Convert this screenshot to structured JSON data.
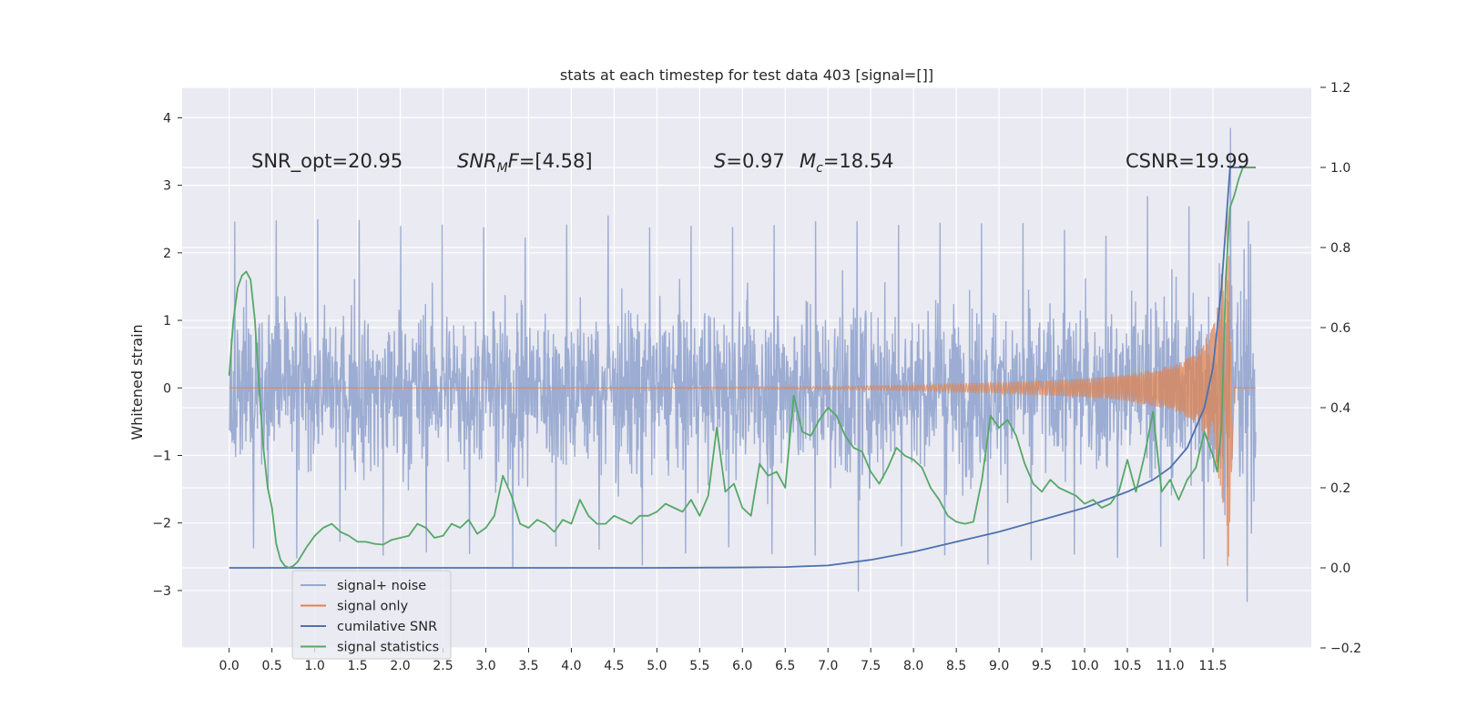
{
  "chart_data": {
    "type": "line",
    "title": "stats at each timestep for test data 403 [signal=[]]",
    "ylabel": "Whitened strain",
    "xlim": [
      -0.55,
      12.65
    ],
    "ylim": [
      -3.85,
      4.45
    ],
    "y2lim": [
      -0.2,
      1.2
    ],
    "grid": true,
    "legend_position": "lower-left",
    "x_ticks": [
      0.0,
      0.5,
      1.0,
      1.5,
      2.0,
      2.5,
      3.0,
      3.5,
      4.0,
      4.5,
      5.0,
      5.5,
      6.0,
      6.5,
      7.0,
      7.5,
      8.0,
      8.5,
      9.0,
      9.5,
      10.0,
      10.5,
      11.0,
      11.5
    ],
    "x_tick_labels": [
      "0.0",
      "0.5",
      "1.0",
      "1.5",
      "2.0",
      "2.5",
      "3.0",
      "3.5",
      "4.0",
      "4.5",
      "5.0",
      "5.5",
      "6.0",
      "6.5",
      "7.0",
      "7.5",
      "8.0",
      "8.5",
      "9.0",
      "9.5",
      "10.0",
      "10.5",
      "11.0",
      "11.5"
    ],
    "y_ticks": [
      -3,
      -2,
      -1,
      0,
      1,
      2,
      3,
      4
    ],
    "y_tick_labels": [
      "−3",
      "−2",
      "−1",
      "0",
      "1",
      "2",
      "3",
      "4"
    ],
    "y2_ticks": [
      -0.2,
      0.0,
      0.2,
      0.4,
      0.6,
      0.8,
      1.0,
      1.2
    ],
    "y2_tick_labels": [
      "−0.2",
      "0.0",
      "0.2",
      "0.4",
      "0.6",
      "0.8",
      "1.0",
      "1.2"
    ],
    "annotations": {
      "snr_opt": "SNR_opt=20.95",
      "snr_mf": "SNR_MF=[4.58]",
      "s_value": "S=0.97",
      "mc_value": "M_c=18.54",
      "csnr": "CSNR=19.99"
    },
    "series": [
      {
        "name": "signal+ noise",
        "axis": "left",
        "color": "#98a9d0",
        "x_range": [
          0.0,
          12.0
        ],
        "typical_band": [
          -1.5,
          1.5
        ],
        "peak_values": [
          2.7,
          2.65,
          2.6,
          2.55,
          2.6,
          2.6,
          2.45,
          2.5,
          2.6,
          2.6,
          2.55,
          2.55,
          2.6,
          2.65,
          2.6,
          2.55,
          2.5,
          2.45,
          2.6,
          2.55,
          2.5,
          2.9,
          2.95,
          4.1
        ],
        "trough_values": [
          -2.4,
          -2.65,
          -2.5,
          -2.6,
          -2.7,
          -2.5,
          -2.75,
          -2.45,
          -2.6,
          -2.8,
          -2.5,
          -2.6,
          -2.65,
          -2.5,
          -3.1,
          -2.5,
          -2.6,
          -2.65,
          -2.7,
          -2.6,
          -2.75,
          -2.6,
          -2.7,
          -3.5
        ]
      },
      {
        "name": "signal only",
        "axis": "left",
        "color": "#dd8452",
        "x": [
          0.0,
          5.5,
          7.0,
          8.0,
          9.0,
          10.0,
          10.5,
          11.0,
          11.3,
          11.5,
          11.6,
          11.68,
          11.75,
          12.0
        ],
        "envelope": [
          0.0,
          0.01,
          0.02,
          0.04,
          0.08,
          0.14,
          0.2,
          0.32,
          0.5,
          0.9,
          1.6,
          2.9,
          0.0,
          0.0
        ]
      },
      {
        "name": "cumilative SNR",
        "axis": "right",
        "color": "#4c72b0",
        "x": [
          0.0,
          5.0,
          6.0,
          6.5,
          7.0,
          7.5,
          8.0,
          8.5,
          9.0,
          9.5,
          10.0,
          10.5,
          10.8,
          11.0,
          11.2,
          11.4,
          11.5,
          11.6,
          11.65,
          11.7,
          11.75,
          12.0
        ],
        "values": [
          0.0,
          0.0,
          0.001,
          0.002,
          0.006,
          0.02,
          0.04,
          0.065,
          0.09,
          0.12,
          0.15,
          0.19,
          0.22,
          0.25,
          0.3,
          0.4,
          0.5,
          0.7,
          0.85,
          1.0,
          1.0,
          1.0
        ]
      },
      {
        "name": "signal statistics",
        "axis": "right",
        "color": "#55a868",
        "x": [
          0.0,
          0.05,
          0.1,
          0.15,
          0.2,
          0.25,
          0.3,
          0.35,
          0.4,
          0.45,
          0.5,
          0.55,
          0.6,
          0.65,
          0.7,
          0.75,
          0.8,
          0.9,
          1.0,
          1.1,
          1.2,
          1.3,
          1.4,
          1.5,
          1.6,
          1.7,
          1.8,
          1.9,
          2.0,
          2.1,
          2.2,
          2.3,
          2.4,
          2.5,
          2.6,
          2.7,
          2.8,
          2.9,
          3.0,
          3.1,
          3.2,
          3.3,
          3.4,
          3.5,
          3.6,
          3.7,
          3.8,
          3.9,
          4.0,
          4.1,
          4.2,
          4.3,
          4.4,
          4.5,
          4.6,
          4.7,
          4.8,
          4.9,
          5.0,
          5.1,
          5.2,
          5.3,
          5.4,
          5.5,
          5.6,
          5.7,
          5.8,
          5.9,
          6.0,
          6.1,
          6.2,
          6.3,
          6.4,
          6.5,
          6.6,
          6.7,
          6.8,
          6.9,
          7.0,
          7.1,
          7.2,
          7.3,
          7.4,
          7.5,
          7.6,
          7.7,
          7.8,
          7.9,
          8.0,
          8.1,
          8.2,
          8.3,
          8.4,
          8.5,
          8.6,
          8.7,
          8.8,
          8.9,
          9.0,
          9.1,
          9.2,
          9.3,
          9.4,
          9.5,
          9.6,
          9.7,
          9.8,
          9.9,
          10.0,
          10.1,
          10.2,
          10.3,
          10.4,
          10.5,
          10.6,
          10.7,
          10.8,
          10.9,
          11.0,
          11.1,
          11.2,
          11.3,
          11.4,
          11.5,
          11.55,
          11.6,
          11.65,
          11.7,
          11.75,
          11.8,
          11.85,
          11.9,
          11.95,
          12.0
        ],
        "values": [
          0.48,
          0.62,
          0.7,
          0.73,
          0.74,
          0.72,
          0.62,
          0.45,
          0.3,
          0.2,
          0.15,
          0.06,
          0.02,
          0.005,
          0.0,
          0.005,
          0.015,
          0.05,
          0.08,
          0.1,
          0.11,
          0.09,
          0.08,
          0.065,
          0.065,
          0.06,
          0.058,
          0.07,
          0.075,
          0.08,
          0.11,
          0.1,
          0.075,
          0.08,
          0.11,
          0.1,
          0.12,
          0.085,
          0.1,
          0.13,
          0.23,
          0.18,
          0.11,
          0.1,
          0.12,
          0.11,
          0.09,
          0.12,
          0.11,
          0.17,
          0.13,
          0.11,
          0.11,
          0.13,
          0.12,
          0.11,
          0.13,
          0.13,
          0.14,
          0.16,
          0.15,
          0.14,
          0.17,
          0.13,
          0.18,
          0.35,
          0.19,
          0.21,
          0.15,
          0.13,
          0.26,
          0.23,
          0.24,
          0.2,
          0.43,
          0.34,
          0.33,
          0.37,
          0.4,
          0.38,
          0.33,
          0.3,
          0.29,
          0.24,
          0.21,
          0.25,
          0.3,
          0.28,
          0.27,
          0.25,
          0.2,
          0.17,
          0.13,
          0.115,
          0.11,
          0.115,
          0.22,
          0.38,
          0.35,
          0.37,
          0.33,
          0.26,
          0.21,
          0.19,
          0.22,
          0.2,
          0.19,
          0.18,
          0.16,
          0.17,
          0.15,
          0.16,
          0.19,
          0.27,
          0.19,
          0.28,
          0.39,
          0.19,
          0.22,
          0.17,
          0.22,
          0.25,
          0.34,
          0.28,
          0.24,
          0.35,
          0.72,
          0.9,
          0.93,
          0.97,
          1.0,
          1.0,
          1.0,
          1.0
        ]
      }
    ],
    "legend": [
      {
        "label": "signal+ noise",
        "color": "#98a9d0"
      },
      {
        "label": "signal only",
        "color": "#dd8452"
      },
      {
        "label": "cumilative SNR",
        "color": "#4c72b0"
      },
      {
        "label": "signal statistics",
        "color": "#55a868"
      }
    ]
  }
}
